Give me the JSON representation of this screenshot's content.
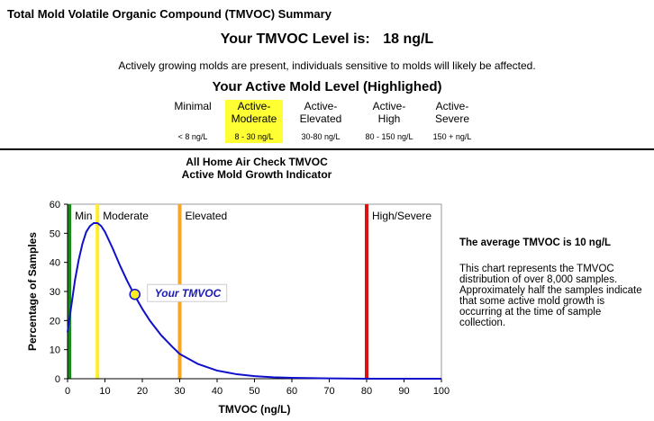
{
  "report": {
    "title": "Total Mold Volatile Organic Compound (TMVOC) Summary",
    "level_label": "Your TMVOC Level is:",
    "level_value": "18",
    "level_unit": "ng/L",
    "note": "Actively growing molds are present, individuals sensitive to molds will likely be affected.",
    "active_heading": "Your Active Mold Level (Highlighed)",
    "levels": [
      {
        "name_1": "Minimal",
        "name_2": "",
        "range": "< 8 ng/L",
        "highlighted": false
      },
      {
        "name_1": "Active-",
        "name_2": "Moderate",
        "range": "8 - 30 ng/L",
        "highlighted": true
      },
      {
        "name_1": "Active-",
        "name_2": "Elevated",
        "range": "30-80 ng/L",
        "highlighted": false
      },
      {
        "name_1": "Active-",
        "name_2": "High",
        "range": "80 - 150 ng/L",
        "highlighted": false
      },
      {
        "name_1": "Active-",
        "name_2": "Severe",
        "range": "150 + ng/L",
        "highlighted": false
      }
    ],
    "highlight_color": "#ffff33"
  },
  "chart_title_1": "All Home Air Check TMVOC",
  "chart_title_2": "Active Mold Growth Indicator",
  "side_panel": {
    "average": "The average TMVOC is 10 ng/L",
    "body": "This chart represents the TMVOC distribution of over 8,000 samples.  Approximately half the samples indicate that some active mold growth is occurring at the time of sample collection."
  },
  "chart_data": {
    "type": "line",
    "title": "All Home Air Check TMVOC",
    "subtitle": "Active Mold Growth Indicator",
    "xlabel": "TMVOC (ng/L)",
    "ylabel": "Percentage of Samples",
    "xlim": [
      0,
      100
    ],
    "ylim": [
      0,
      60
    ],
    "xticks": [
      0,
      10,
      20,
      30,
      40,
      50,
      60,
      70,
      80,
      90,
      100
    ],
    "yticks": [
      0,
      10,
      20,
      30,
      40,
      50,
      60
    ],
    "grid": false,
    "series": [
      {
        "color": "#1010cc",
        "x": [
          0,
          1,
          2,
          3,
          4,
          5,
          6,
          7,
          8,
          9,
          10,
          12,
          14,
          16,
          18,
          20,
          22,
          25,
          28,
          30,
          35,
          40,
          45,
          50,
          55,
          60,
          70,
          80,
          90,
          100
        ],
        "y": [
          16,
          25,
          34,
          41,
          46.5,
          50.5,
          52.5,
          53.5,
          53.5,
          52.5,
          50.5,
          45,
          39,
          33.5,
          28.5,
          24,
          20,
          15,
          11,
          8.5,
          5,
          2.8,
          1.6,
          0.9,
          0.5,
          0.3,
          0.1,
          0,
          0,
          0
        ]
      }
    ],
    "vertical_lines": [
      {
        "x": 0.5,
        "color": "#1a8a1a",
        "label": "Min"
      },
      {
        "x": 8,
        "color": "#ffee22",
        "label": "Moderate"
      },
      {
        "x": 30,
        "color": "#f5a623",
        "label": "Elevated"
      },
      {
        "x": 80,
        "color": "#dd1111",
        "label": "High/Severe"
      }
    ],
    "marker": {
      "x": 18,
      "y": 29,
      "color": "#ffee22",
      "label": "Your TMVOC"
    }
  }
}
